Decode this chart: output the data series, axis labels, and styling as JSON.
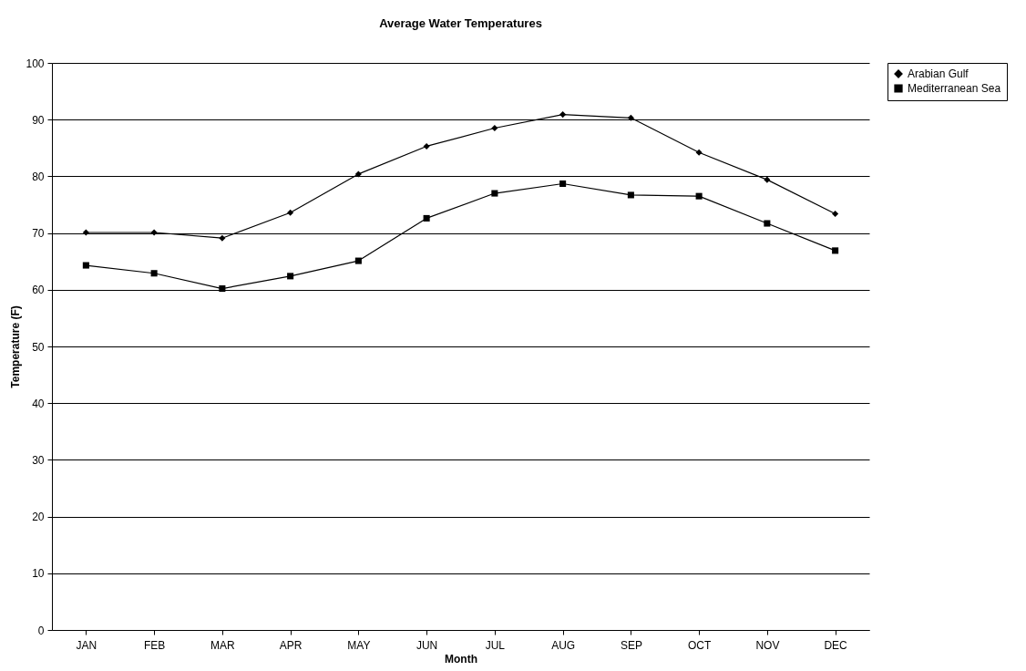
{
  "chart_data": {
    "type": "line",
    "title": "Average Water Temperatures",
    "xlabel": "Month",
    "ylabel": "Temperature (F)",
    "categories": [
      "JAN",
      "FEB",
      "MAR",
      "APR",
      "MAY",
      "JUN",
      "JUL",
      "AUG",
      "SEP",
      "OCT",
      "NOV",
      "DEC"
    ],
    "series": [
      {
        "name": "Arabian Gulf",
        "color": "#000000",
        "marker": "diamond",
        "values": [
          70.1,
          70.1,
          69.1,
          73.6,
          80.4,
          85.3,
          88.5,
          90.9,
          90.3,
          84.2,
          79.4,
          73.4
        ]
      },
      {
        "name": "Mediterranean Sea",
        "color": "#000000",
        "marker": "square",
        "values": [
          64.3,
          62.9,
          60.2,
          62.4,
          65.1,
          72.6,
          77.0,
          78.7,
          76.7,
          76.5,
          71.7,
          66.9
        ]
      }
    ],
    "ylim": [
      0,
      100
    ],
    "yticks": [
      0,
      10,
      20,
      30,
      40,
      50,
      60,
      70,
      80,
      90,
      100
    ],
    "grid": "y",
    "legend": "right",
    "line_style": "solid"
  }
}
